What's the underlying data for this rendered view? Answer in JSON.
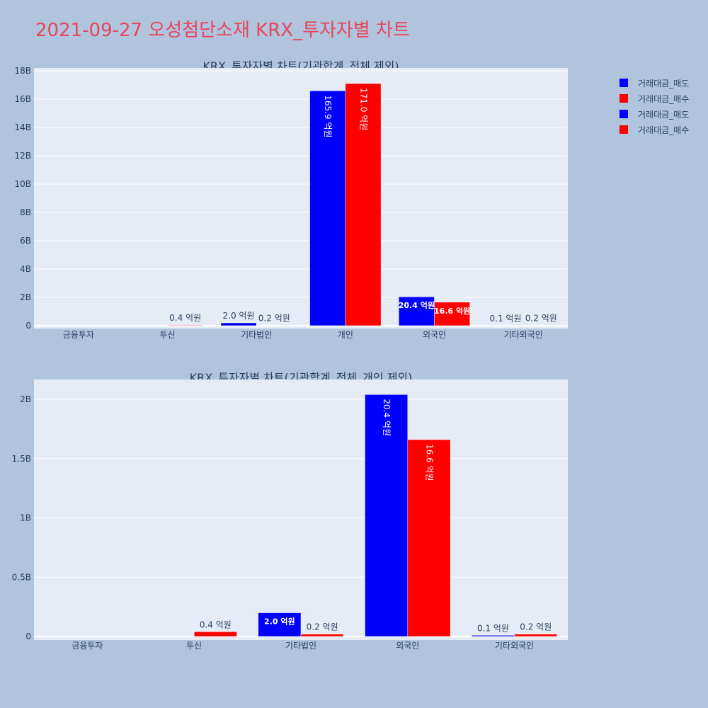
{
  "page": {
    "title": "2021-09-27 오성첨단소재 KRX_투자자별 차트"
  },
  "legend": {
    "items": [
      {
        "label": "거래대금_매도",
        "color": "#0000ff"
      },
      {
        "label": "거래대금_매수",
        "color": "#ff0000"
      },
      {
        "label": "거래대금_매도",
        "color": "#0000ff"
      },
      {
        "label": "거래대금_매수",
        "color": "#ff0000"
      }
    ]
  },
  "chart_data": [
    {
      "type": "bar",
      "title": "KRX_투자자별 차트(기관합계_전체 제외)",
      "categories": [
        "금융투자",
        "투신",
        "기타법인",
        "개인",
        "외국인",
        "기타외국인"
      ],
      "series": [
        {
          "name": "거래대금_매도",
          "color": "#0000ff",
          "values": [
            0,
            0,
            0.2,
            16.59,
            2.04,
            0.01
          ],
          "labels": [
            "",
            "",
            "2.0 억원",
            "165.9 억원",
            "20.4 억원",
            "0.1 억원"
          ]
        },
        {
          "name": "거래대금_매수",
          "color": "#ff0000",
          "values": [
            0,
            0.04,
            0.02,
            17.1,
            1.66,
            0.02
          ],
          "labels": [
            "",
            "0.4 억원",
            "0.2 억원",
            "171.0 억원",
            "16.6 억원",
            "0.2 억원"
          ]
        }
      ],
      "yticks": [
        0,
        2,
        4,
        6,
        8,
        10,
        12,
        14,
        16,
        18
      ],
      "ytick_labels": [
        "0",
        "2B",
        "4B",
        "6B",
        "8B",
        "10B",
        "12B",
        "14B",
        "16B",
        "18B"
      ],
      "ylim": [
        0,
        18
      ],
      "grid": true,
      "legend_position": "top-right"
    },
    {
      "type": "bar",
      "title": "KRX_투자자별 차트(기관합계_전체_개인 제외)",
      "categories": [
        "금융투자",
        "투신",
        "기타법인",
        "외국인",
        "기타외국인"
      ],
      "series": [
        {
          "name": "거래대금_매도",
          "color": "#0000ff",
          "values": [
            0,
            0,
            0.2,
            2.04,
            0.01
          ],
          "labels": [
            "",
            "",
            "2.0 억원",
            "20.4 억원",
            "0.1 억원"
          ]
        },
        {
          "name": "거래대금_매수",
          "color": "#ff0000",
          "values": [
            0,
            0.04,
            0.02,
            1.66,
            0.02
          ],
          "labels": [
            "",
            "0.4 억원",
            "0.2 억원",
            "16.6 억원",
            "0.2 억원"
          ]
        }
      ],
      "yticks": [
        0,
        0.5,
        1,
        1.5,
        2
      ],
      "ytick_labels": [
        "0",
        "0.5B",
        "1B",
        "1.5B",
        "2B"
      ],
      "ylim": [
        0,
        2.18
      ],
      "grid": true
    }
  ]
}
